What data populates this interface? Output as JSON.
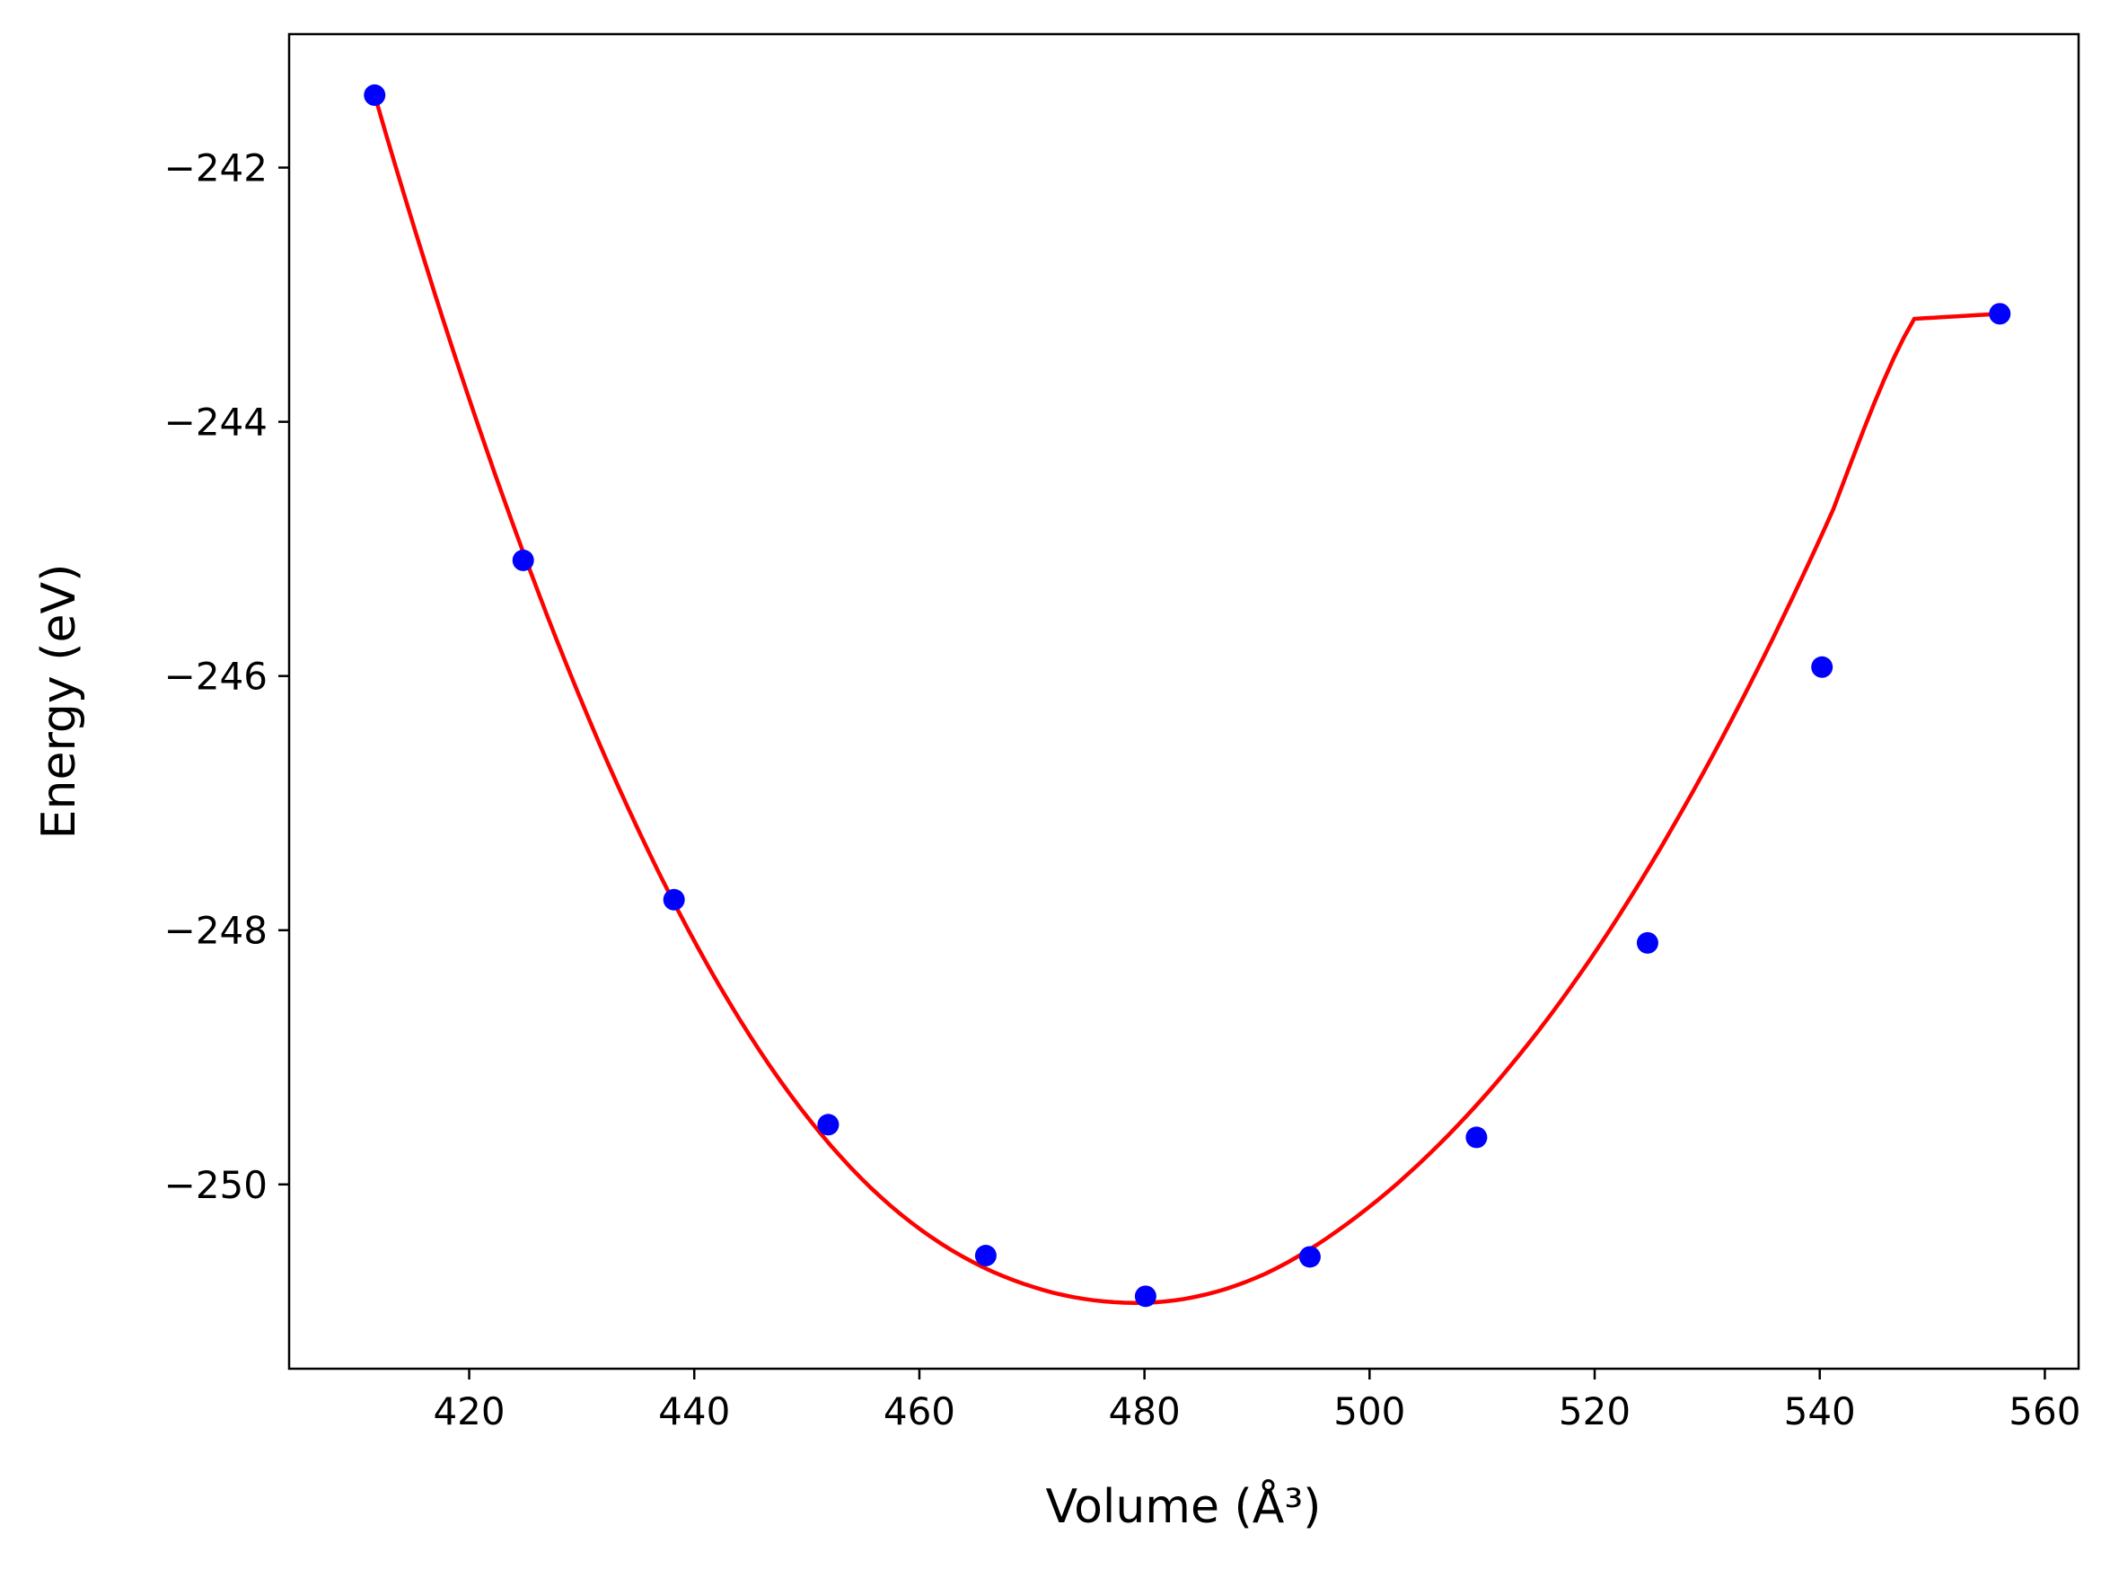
{
  "chart_data": {
    "type": "scatter",
    "xlabel": "Volume (Å³)",
    "ylabel": "Energy (eV)",
    "xlim": [
      404,
      563
    ],
    "ylim": [
      -251.45,
      -240.95
    ],
    "x_ticks": [
      420,
      440,
      460,
      480,
      500,
      520,
      540,
      560
    ],
    "y_ticks": [
      -242,
      -244,
      -246,
      -248,
      -250
    ],
    "x_tick_labels": [
      "420",
      "440",
      "460",
      "480",
      "500",
      "520",
      "540",
      "560"
    ],
    "y_tick_labels": [
      "−242",
      "−244",
      "−246",
      "−248",
      "−250"
    ],
    "grid": false,
    "series": [
      {
        "kind": "points",
        "color": "#0000ff",
        "x": [
          411.6,
          424.8,
          438.2,
          451.9,
          465.9,
          480.1,
          494.7,
          509.5,
          524.7,
          540.2,
          556.0
        ],
        "y": [
          -241.43,
          -245.09,
          -247.76,
          -249.53,
          -250.56,
          -250.88,
          -250.57,
          -249.63,
          -248.1,
          -245.93,
          -243.15
        ]
      },
      {
        "kind": "fit-curve",
        "color": "#ff0000",
        "x": [
          411.6,
          418.8,
          426.0,
          433.2,
          440.4,
          447.6,
          454.8,
          462.0,
          469.2,
          476.4,
          483.6,
          490.8,
          498.0,
          505.2,
          512.4,
          519.6,
          526.8,
          534.0,
          541.2,
          548.4,
          556.0
        ],
        "y": [
          -241.43,
          -243.5,
          -245.31,
          -246.86,
          -248.15,
          -249.18,
          -249.95,
          -250.47,
          -250.78,
          -250.92,
          -250.9,
          -250.7,
          -250.31,
          -249.77,
          -249.08,
          -248.23,
          -247.21,
          -246.03,
          -244.69,
          -243.19,
          -243.15
        ]
      }
    ]
  }
}
